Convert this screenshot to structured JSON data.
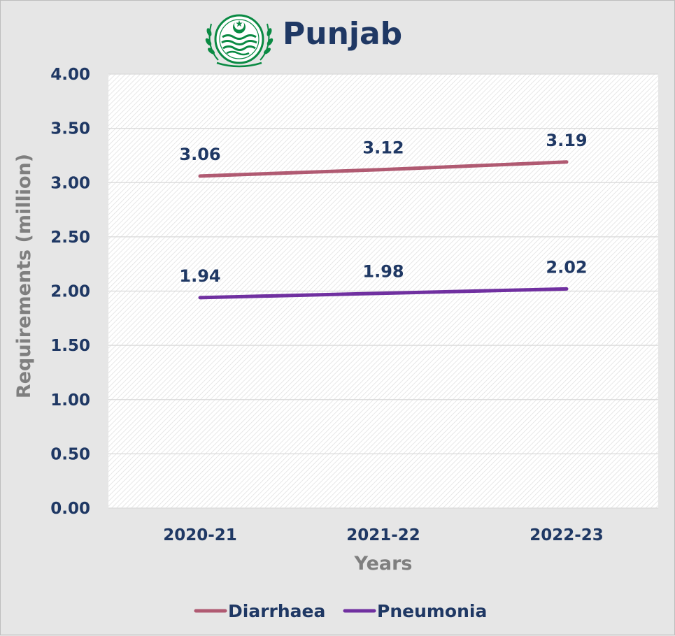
{
  "chart_data": {
    "type": "line",
    "title": "Punjab",
    "categories": [
      "2020-21",
      "2021-22",
      "2022-23"
    ],
    "xlabel": "Years",
    "ylabel": "Requirements (million)",
    "ylim": [
      0,
      4
    ],
    "yticks": [
      "0.00",
      "0.50",
      "1.00",
      "1.50",
      "2.00",
      "2.50",
      "3.00",
      "3.50",
      "4.00"
    ],
    "grid": true,
    "legend_position": "bottom",
    "series": [
      {
        "name": "Diarrhaea",
        "values": [
          3.06,
          3.12,
          3.19
        ],
        "labels": [
          "3.06",
          "3.12",
          "3.19"
        ],
        "color": "#b05a72"
      },
      {
        "name": "Pneumonia",
        "values": [
          1.94,
          1.98,
          2.02
        ],
        "labels": [
          "1.94",
          "1.98",
          "2.02"
        ],
        "color": "#7030a0"
      }
    ]
  },
  "logo": {
    "icon": "punjab-government-emblem",
    "color": "#0a8a43",
    "inscription": "حکومت پنجاب"
  }
}
